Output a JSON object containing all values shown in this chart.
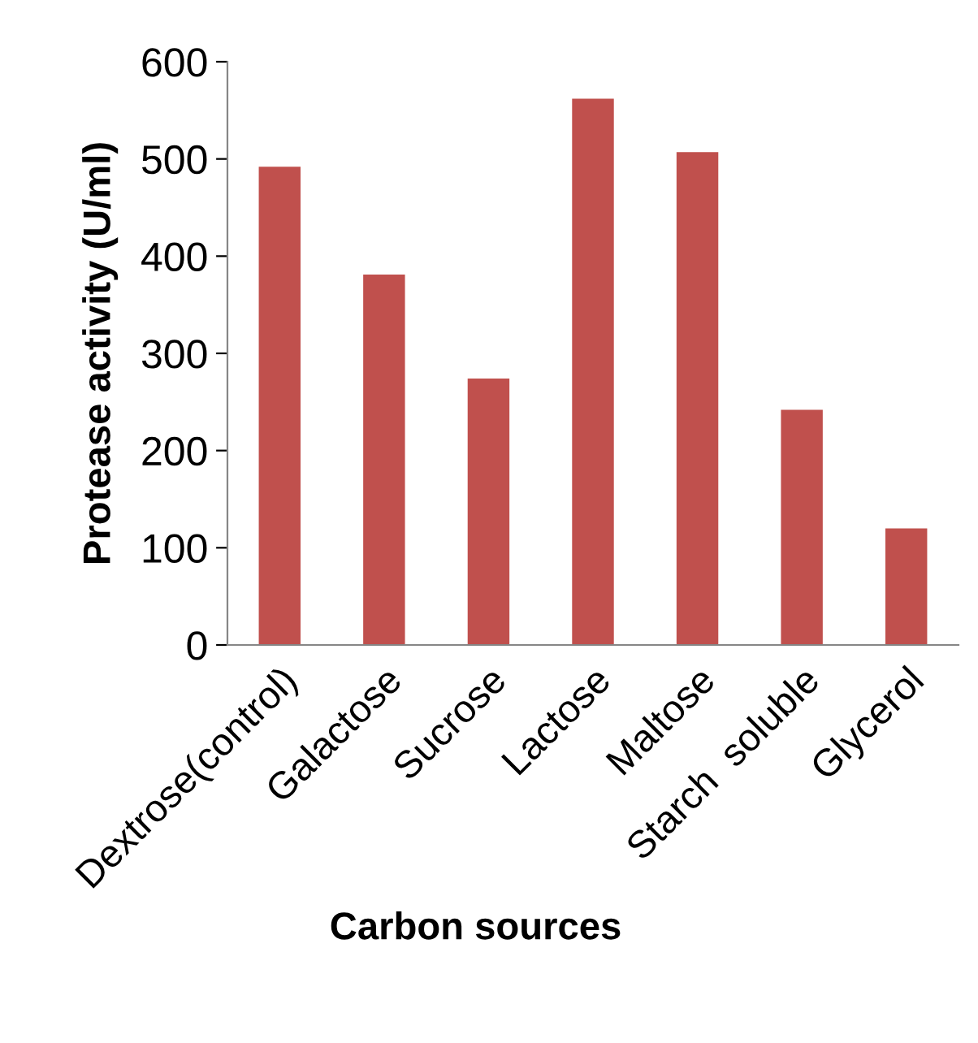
{
  "chart_data": {
    "type": "bar",
    "xlabel": "Carbon sources",
    "ylabel": "Protease activity (U/ml)",
    "categories": [
      "Dextrose(control)",
      "Galactose",
      "Sucrose",
      "Lactose",
      "Maltose",
      "Starch  soluble",
      "Glycerol"
    ],
    "values": [
      492,
      381,
      274,
      562,
      507,
      242,
      120
    ],
    "color": "#c0504d",
    "ylim": [
      0,
      600
    ],
    "yticks": [
      0,
      100,
      200,
      300,
      400,
      500,
      600
    ],
    "grid": false,
    "legend": false
  }
}
